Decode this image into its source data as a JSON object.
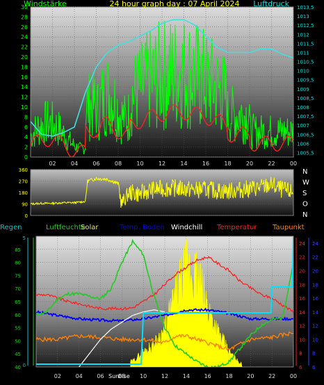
{
  "chart_data": [
    {
      "type": "line",
      "title": "24 hour graph day : 07 April 2024",
      "series_labels": {
        "left": "Windstärke",
        "right": "Luftdruck"
      },
      "colors": {
        "wind": "#00ff00",
        "gust": "#00ff00",
        "pressure": "#40e0e0",
        "wind_avg": "#ff2020"
      },
      "x_ticks": [
        "02",
        "04",
        "06",
        "08",
        "10",
        "12",
        "14",
        "16",
        "18",
        "20",
        "22",
        "00"
      ],
      "y_left_ticks": [
        "0",
        "2",
        "4",
        "6",
        "8",
        "10",
        "12",
        "14",
        "16",
        "18",
        "20",
        "22",
        "24",
        "26",
        "28",
        "30"
      ],
      "y_left_range": [
        0,
        30
      ],
      "y_right_ticks": [
        "1005,5",
        "1006",
        "1006,5",
        "1007",
        "1007,5",
        "1008",
        "1008,5",
        "1009",
        "1009,5",
        "1010",
        "1010,5",
        "1011",
        "1011,5",
        "1012",
        "1012,5",
        "1013",
        "1013,5"
      ],
      "y_right_range": [
        1005.25,
        1013.5
      ],
      "pressure": {
        "x": [
          0,
          1,
          2,
          3,
          4,
          5,
          6,
          7,
          8,
          9,
          10,
          11,
          12,
          13,
          14,
          15,
          16,
          17,
          18,
          19,
          20,
          21,
          22,
          23,
          24
        ],
        "y": [
          1007.2,
          1006.5,
          1006.4,
          1006.6,
          1006.9,
          1008.8,
          1010.2,
          1011.0,
          1011.4,
          1011.6,
          1011.9,
          1012.2,
          1012.6,
          1012.8,
          1012.8,
          1012.5,
          1011.9,
          1011.3,
          1011.0,
          1011.0,
          1011.0,
          1011.2,
          1011.2,
          1010.9,
          1010.7
        ]
      }
    },
    {
      "type": "line",
      "title": "",
      "direction_labels": [
        "N",
        "W",
        "S",
        "O",
        "N"
      ],
      "colors": {
        "direction": "#ffff00"
      },
      "y_ticks": [
        "0",
        "90",
        "180",
        "270",
        "360"
      ],
      "y_range": [
        0,
        360
      ],
      "wind_direction": {
        "x": [
          0,
          1,
          2,
          3,
          4,
          5,
          5.2,
          6,
          7,
          8,
          8.3,
          9,
          10,
          11,
          12,
          13,
          14,
          15,
          16,
          17,
          18,
          19,
          20,
          21,
          22,
          23,
          24
        ],
        "y": [
          90,
          95,
          95,
          100,
          100,
          110,
          270,
          290,
          285,
          250,
          90,
          180,
          170,
          200,
          210,
          215,
          210,
          200,
          205,
          195,
          190,
          200,
          210,
          220,
          240,
          200,
          180
        ]
      }
    },
    {
      "type": "line",
      "legend": [
        "Regen",
        "Luftfeuchte",
        "Solar",
        "Temp. Boden",
        "Windchill",
        "Temperatur",
        "Taupunkt"
      ],
      "colors": {
        "rain": "#00c8c8",
        "humidity": "#22cc22",
        "solar": "#ffff00",
        "soil": "#0000ff",
        "windchill": "#ffffff",
        "temperature": "#ff2020",
        "dewpoint": "#ff7f00",
        "sun": "#ffffff",
        "rain_bar": "#00e0ff"
      },
      "x_ticks": [
        "02",
        "04",
        "06",
        "08",
        "10",
        "12",
        "14",
        "16",
        "18",
        "20",
        "22",
        "00"
      ],
      "sun_labels": [
        "Sun",
        "Bise"
      ],
      "y_humidity_ticks": [
        "40",
        "45",
        "50",
        "55",
        "60",
        "65",
        "70",
        "75",
        "80",
        "85"
      ],
      "y_humidity_range": [
        40,
        90
      ],
      "y_rain_ticks": [
        "0",
        "5"
      ],
      "y_temp_ticks": [
        "6",
        "8",
        "10",
        "12",
        "14",
        "16",
        "18",
        "20",
        "22",
        "24"
      ],
      "y_temp_range": [
        6,
        25
      ],
      "temperature": {
        "x": [
          0,
          1,
          2,
          3,
          4,
          5,
          6,
          7,
          8,
          9,
          10,
          11,
          12,
          13,
          14,
          15,
          16,
          17,
          18,
          19,
          20,
          21,
          22,
          23,
          24
        ],
        "y": [
          16.5,
          16.5,
          16,
          15.5,
          15.2,
          14.8,
          14.5,
          14.5,
          14.5,
          14.6,
          15.5,
          16.5,
          18,
          19.5,
          20.5,
          21.5,
          22,
          21,
          20,
          18.5,
          17.5,
          16.5,
          16,
          15,
          14
        ]
      },
      "dewpoint": {
        "x": [
          0,
          2,
          4,
          6,
          8,
          10,
          12,
          13,
          14,
          15,
          16,
          17,
          18,
          19,
          20,
          22,
          24
        ],
        "y": [
          10,
          10,
          10.5,
          10.3,
          10,
          10,
          9.5,
          10.5,
          10.5,
          10,
          9.5,
          9,
          8.5,
          9.3,
          10,
          10.3,
          11
        ]
      },
      "soil_temperature": {
        "x": [
          0,
          2,
          4,
          6,
          8,
          10,
          12,
          14,
          16,
          18,
          20,
          22,
          24
        ],
        "y": [
          14,
          13.5,
          13,
          12.8,
          12.7,
          13,
          13.5,
          14.3,
          14.3,
          13.8,
          13,
          13,
          13
        ]
      },
      "windchill": {
        "x": [
          4,
          5,
          6,
          7,
          8,
          9,
          10,
          11,
          12
        ],
        "y": [
          6,
          8,
          10,
          11.5,
          12.5,
          13.5,
          14,
          14.3,
          14
        ]
      },
      "humidity": {
        "x": [
          0,
          1,
          2,
          3,
          4,
          5,
          6,
          7,
          8,
          9,
          10,
          11,
          12,
          13,
          14,
          15,
          16,
          17,
          18,
          19,
          20,
          21,
          22,
          23,
          24
        ],
        "y": [
          60,
          61,
          66,
          68,
          68,
          67,
          66,
          70,
          80,
          88,
          83,
          67,
          55,
          48,
          45,
          42,
          40,
          40,
          42,
          47,
          52,
          56,
          58,
          59,
          80
        ]
      },
      "solar": {
        "x": [
          9,
          10,
          11,
          12,
          13,
          14,
          15,
          16,
          17,
          18,
          19
        ],
        "y": [
          3,
          8,
          12,
          20,
          38,
          52,
          48,
          32,
          18,
          8,
          2
        ]
      },
      "rain": {
        "x": [
          0,
          9.8,
          10,
          21.9,
          22,
          23.9,
          24
        ],
        "y": [
          0,
          0,
          2,
          2,
          3,
          3,
          5
        ]
      }
    }
  ]
}
